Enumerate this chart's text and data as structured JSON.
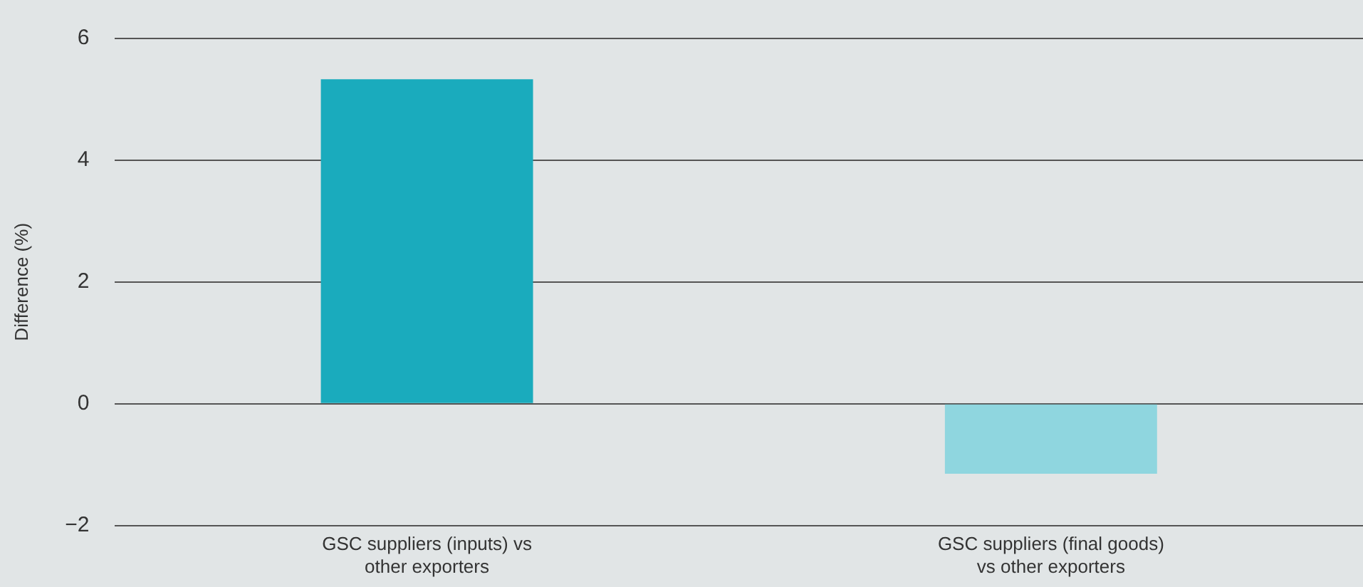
{
  "chart_data": {
    "type": "bar",
    "ylabel": "Difference (%)",
    "categories": [
      "GSC suppliers (inputs) vs other exporters",
      "GSC suppliers (final goods) vs other exporters"
    ],
    "values": [
      5.33,
      -1.15
    ],
    "colors": [
      "#1aabbd",
      "#8fd6df"
    ],
    "ylim": [
      -2,
      6
    ],
    "yticks": [
      {
        "value": -2,
        "label": "−2"
      },
      0,
      2,
      4,
      6
    ],
    "grid": "y",
    "legend": false
  }
}
